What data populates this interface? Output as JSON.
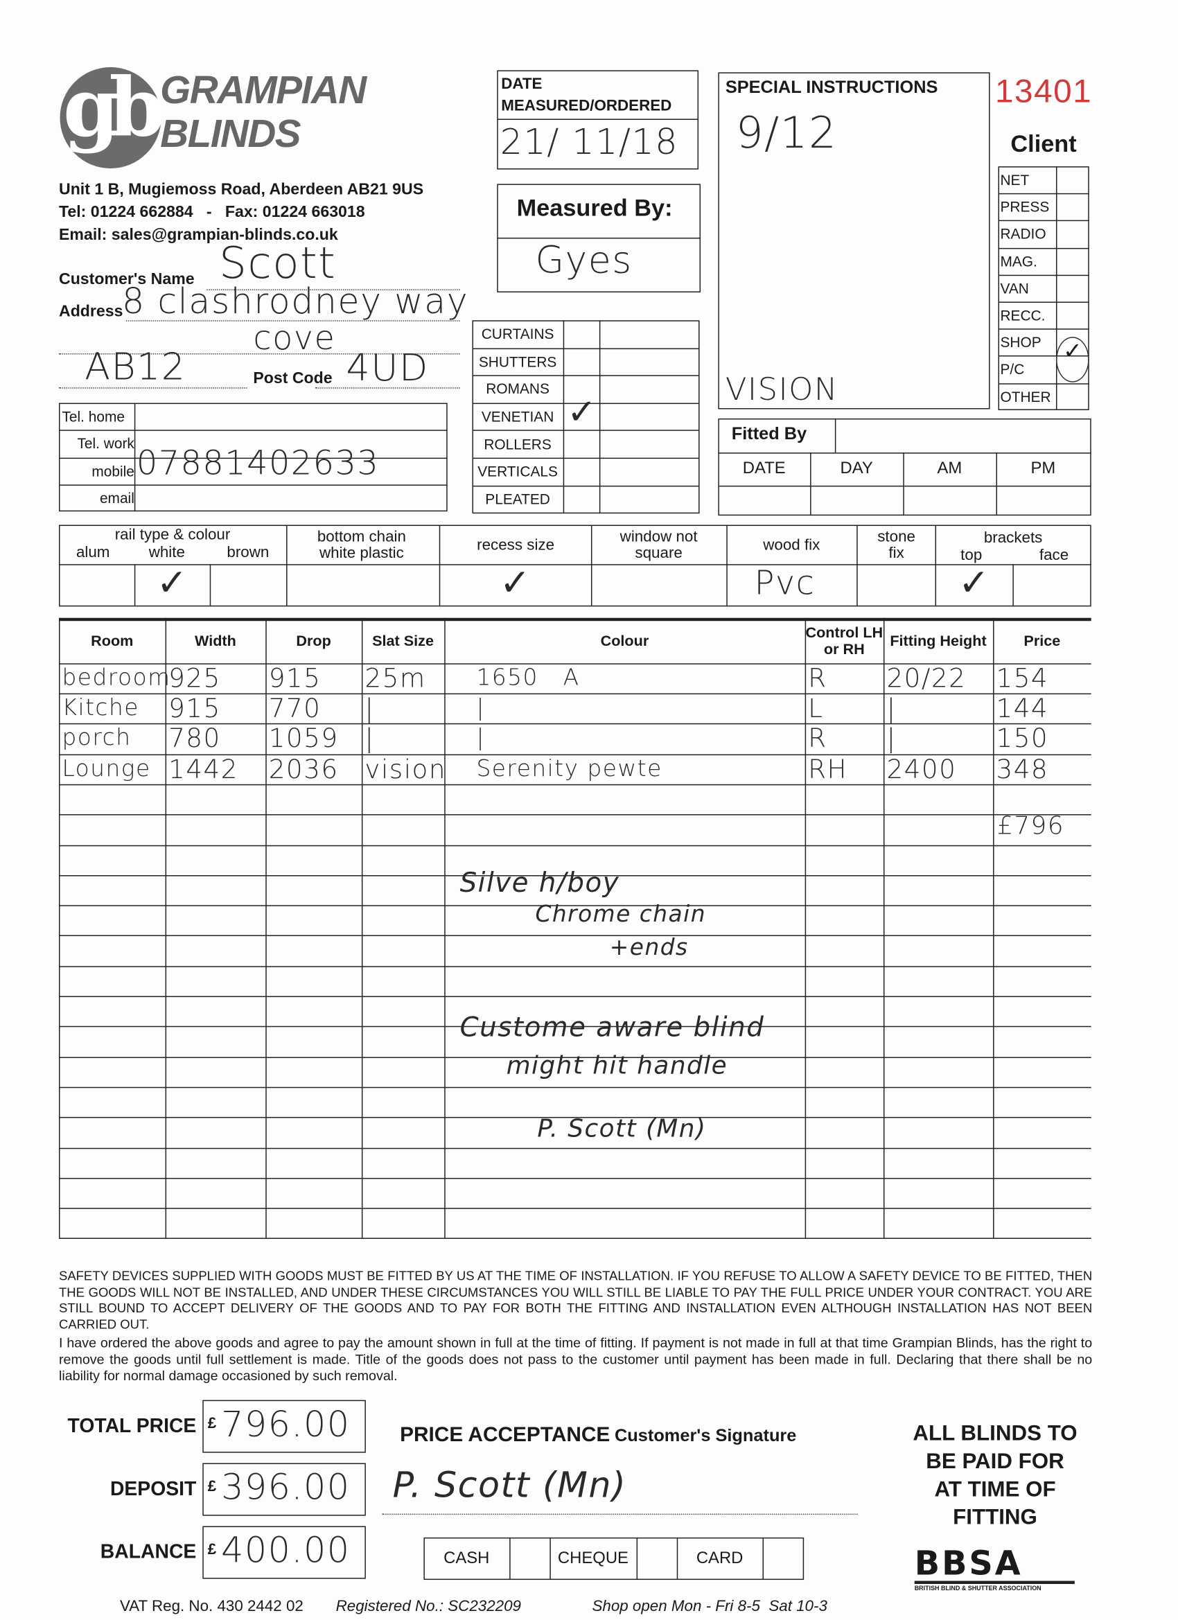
{
  "company": {
    "name_line1": "GRAMPIAN",
    "name_line2": "BLINDS",
    "logo_letters": "gb",
    "address": "Unit 1 B, Mugiemoss Road, Aberdeen AB21 9US",
    "tel_fax": "Tel: 01224 662884   -   Fax: 01224 663018",
    "email": "Email: sales@grampian-blinds.co.uk"
  },
  "form_number": "13401",
  "customer": {
    "name_label": "Customer's Name",
    "name_value": "Scott",
    "address_label": "Address",
    "address_line1": "8 clashrodney way",
    "address_line2": "cove",
    "address_line3": "AB12",
    "postcode_label": "Post Code",
    "postcode_value": "4UD"
  },
  "phones": [
    {
      "label": "Tel. home",
      "value": ""
    },
    {
      "label": "Tel. work",
      "value": ""
    },
    {
      "label": "mobile",
      "value": "07881402633"
    },
    {
      "label": "email",
      "value": ""
    }
  ],
  "date_box": {
    "label_line1": "DATE",
    "label_line2": "MEASURED/ORDERED",
    "value": "21/ 11/18"
  },
  "measured_by": {
    "label": "Measured By:",
    "value": "Gyes"
  },
  "products": [
    {
      "label": "CURTAINS",
      "checked": false
    },
    {
      "label": "SHUTTERS",
      "checked": false
    },
    {
      "label": "ROMANS",
      "checked": false
    },
    {
      "label": "VENETIAN",
      "checked": true
    },
    {
      "label": "ROLLERS",
      "checked": false
    },
    {
      "label": "VERTICALS",
      "checked": false
    },
    {
      "label": "PLEATED",
      "checked": false
    }
  ],
  "check_mark": "✓",
  "special": {
    "label": "SPECIAL INSTRUCTIONS",
    "value": "9/12",
    "note": "VISION"
  },
  "client": {
    "label": "Client",
    "sources": [
      {
        "label": "NET"
      },
      {
        "label": "PRESS"
      },
      {
        "label": "RADIO"
      },
      {
        "label": "MAG."
      },
      {
        "label": "VAN"
      },
      {
        "label": "RECC."
      },
      {
        "label": "SHOP"
      },
      {
        "label": "P/C",
        "checked": true
      },
      {
        "label": "OTHER"
      }
    ]
  },
  "fitted_by": {
    "label": "Fitted By",
    "columns": [
      "DATE",
      "DAY",
      "AM",
      "PM"
    ]
  },
  "options": {
    "rail_label": "rail type & colour",
    "rail_sub": [
      "alum",
      "white",
      "brown"
    ],
    "bottom_chain": "bottom chain white plastic",
    "recess": "recess size",
    "window": "window not square",
    "wood_fix": "wood fix",
    "wood_fix_value": "Pvc",
    "stone_fix": "stone fix",
    "brackets": "brackets",
    "brackets_sub": [
      "top",
      "face"
    ]
  },
  "order_table": {
    "headers": [
      "Room",
      "Width",
      "Drop",
      "Slat Size",
      "Colour",
      "Control LH or RH",
      "Fitting Height",
      "Price"
    ],
    "rows": [
      [
        "bedroom",
        "925",
        "915",
        "25m",
        "1650   A",
        "R",
        "20/22",
        "154"
      ],
      [
        "Kitche",
        "915",
        "770",
        "|",
        "|",
        "L",
        "|",
        "144"
      ],
      [
        "porch",
        "780",
        "1059",
        "|",
        "|",
        "R",
        "|",
        "150"
      ],
      [
        "Lounge",
        "1442",
        "2036",
        "vision",
        "Serenity pewte",
        "RH",
        "2400",
        "348"
      ]
    ],
    "total": "£796",
    "notes": [
      "Silve h/boy",
      "Chrome chain",
      "+ends",
      "Custome aware blind",
      "might hit handle",
      "P. Scott (Mn)"
    ]
  },
  "legal": {
    "safety": "SAFETY DEVICES SUPPLIED WITH GOODS MUST BE FITTED BY US AT THE TIME OF INSTALLATION. IF YOU REFUSE TO ALLOW A SAFETY DEVICE TO BE FITTED, THEN THE GOODS WILL NOT BE INSTALLED, AND UNDER THESE CIRCUMSTANCES YOU WILL STILL BE LIABLE TO PAY THE FULL PRICE UNDER YOUR CONTRACT. YOU ARE STILL BOUND TO ACCEPT DELIVERY OF THE GOODS AND TO PAY FOR BOTH THE FITTING AND INSTALLATION EVEN ALTHOUGH INSTALLATION HAS NOT BEEN CARRIED OUT.",
    "agreement": "I have ordered the above goods and agree to pay the amount shown in full at the time of fitting. If payment is not made in full at that time Grampian Blinds, has the right to remove the goods until full settlement is made. Title of the goods does not pass to the customer until payment has been made in full. Declaring that there shall be no liability for normal damage occasioned by such removal."
  },
  "totals": [
    {
      "label": "TOTAL PRICE",
      "currency": "£",
      "value": "796.00"
    },
    {
      "label": "DEPOSIT",
      "currency": "£",
      "value": "396.00"
    },
    {
      "label": "BALANCE",
      "currency": "£",
      "value": "400.00"
    }
  ],
  "acceptance": {
    "label": "PRICE ACCEPTANCE",
    "sub": "Customer's Signature",
    "signature": "P. Scott (Mn)"
  },
  "payment": [
    "CASH",
    "CHEQUE",
    "CARD"
  ],
  "notice": [
    "ALL BLINDS TO",
    "BE PAID FOR",
    "AT TIME OF",
    "FITTING"
  ],
  "bbsa": {
    "logo": "BBSA",
    "caption": "BRITISH BLIND & SHUTTER ASSOCIATION"
  },
  "footer": {
    "vat": "VAT Reg. No. 430 2442 02",
    "registered": "Registered No.: SC232209",
    "hours": "Shop open Mon - Fri 8-5  Sat 10-3"
  },
  "colors": {
    "form_number": "#d23a3a",
    "ink": "#2a2a2a",
    "logo_gray": "#6b6b6b"
  }
}
